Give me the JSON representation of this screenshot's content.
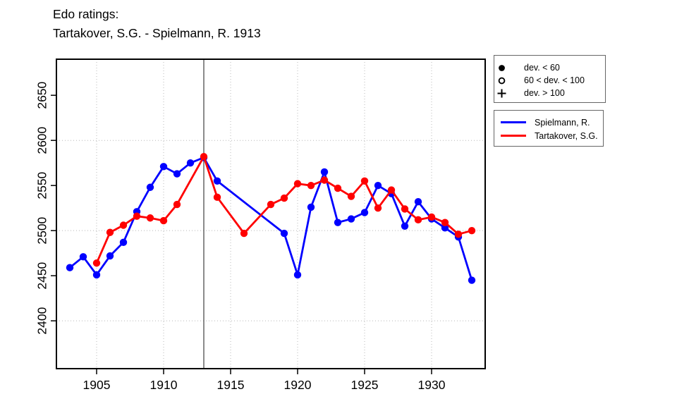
{
  "title": {
    "line1": "Edo ratings:",
    "line2": "Tartakover, S.G. - Spielmann, R. 1913"
  },
  "colors": {
    "spielmann": "#0000ff",
    "tartakover": "#ff0000",
    "grid": "#b8b8b8",
    "reference_line": "#4d4d4d",
    "axis": "#000000",
    "background": "#ffffff"
  },
  "chart_data": {
    "type": "line",
    "title": "Edo ratings: Tartakover, S.G. - Spielmann, R. 1913",
    "xlabel": "",
    "ylabel": "",
    "xlim": [
      1902,
      1934
    ],
    "ylim": [
      2347,
      2690
    ],
    "x_ticks": [
      1905,
      1910,
      1915,
      1920,
      1925,
      1930
    ],
    "y_ticks": [
      2400,
      2450,
      2500,
      2550,
      2600,
      2650
    ],
    "grid": true,
    "grid_x": [
      1905,
      1910,
      1915,
      1920,
      1925,
      1930
    ],
    "grid_y": [
      2400,
      2500,
      2600
    ],
    "reference_line_x": 1913,
    "legend_position": "right-outside",
    "marker_legend": [
      {
        "symbol": "filled-circle",
        "label": "dev. < 60"
      },
      {
        "symbol": "open-circle",
        "label": "60 < dev. < 100"
      },
      {
        "symbol": "plus",
        "label": "dev. > 100"
      }
    ],
    "series": [
      {
        "name": "Spielmann, R.",
        "color": "#0000ff",
        "marker": "filled-circle",
        "x": [
          1903,
          1904,
          1905,
          1906,
          1907,
          1908,
          1909,
          1910,
          1911,
          1912,
          1913,
          1914,
          1919,
          1920,
          1921,
          1922,
          1923,
          1924,
          1925,
          1926,
          1927,
          1928,
          1929,
          1930,
          1931,
          1932,
          1933
        ],
        "y": [
          2459,
          2471,
          2451,
          2472,
          2487,
          2521,
          2548,
          2571,
          2563,
          2575,
          2581,
          2555,
          2497,
          2451,
          2526,
          2565,
          2509,
          2513,
          2520,
          2550,
          2541,
          2505,
          2532,
          2513,
          2503,
          2493,
          2445
        ]
      },
      {
        "name": "Tartakover, S.G.",
        "color": "#ff0000",
        "marker": "filled-circle",
        "x": [
          1905,
          1906,
          1907,
          1908,
          1909,
          1910,
          1911,
          1913,
          1914,
          1916,
          1918,
          1919,
          1920,
          1921,
          1922,
          1923,
          1924,
          1925,
          1926,
          1927,
          1928,
          1929,
          1930,
          1931,
          1932,
          1933
        ],
        "y": [
          2464,
          2498,
          2506,
          2516,
          2514,
          2511,
          2529,
          2582,
          2537,
          2497,
          2529,
          2536,
          2552,
          2550,
          2556,
          2547,
          2538,
          2555,
          2525,
          2545,
          2524,
          2512,
          2515,
          2509,
          2496,
          2500
        ]
      }
    ]
  }
}
